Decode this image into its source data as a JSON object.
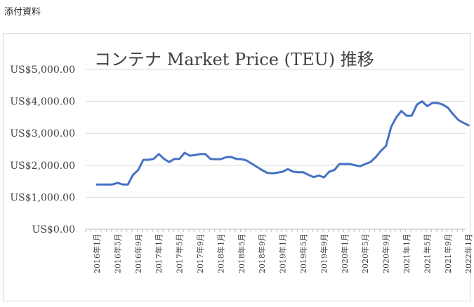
{
  "document_label": "添付資料",
  "chart_data": {
    "type": "line",
    "title": "コンテナ Market Price (TEU) 推移",
    "xlabel": "",
    "ylabel": "",
    "ylim": [
      0,
      5000
    ],
    "y_ticks": [
      "US$0.00",
      "US$1,000.00",
      "US$2,000.00",
      "US$3,000.00",
      "US$4,000.00",
      "US$5,000.00"
    ],
    "y_tick_values": [
      0,
      1000,
      2000,
      3000,
      4000,
      5000
    ],
    "x_tick_labels": [
      "2016年1月",
      "2016年5月",
      "2016年9月",
      "2017年1月",
      "2017年5月",
      "2017年9月",
      "2018年1月",
      "2018年5月",
      "2018年9月",
      "2019年1月",
      "2019年5月",
      "2019年9月",
      "2020年1月",
      "2020年5月",
      "2020年9月",
      "2021年1月",
      "2021年5月",
      "2021年9月",
      "2022年1月"
    ],
    "grid": true,
    "line_color": "#4472c4",
    "series": [
      {
        "values": [
          1400,
          1400,
          1400,
          1400,
          1450,
          1400,
          1400,
          1700,
          1850,
          2170,
          2170,
          2200,
          2350,
          2200,
          2100,
          2200,
          2200,
          2390,
          2300,
          2320,
          2350,
          2350,
          2200,
          2190,
          2190,
          2250,
          2260,
          2200,
          2190,
          2150,
          2050,
          1950,
          1850,
          1760,
          1750,
          1770,
          1800,
          1880,
          1800,
          1780,
          1780,
          1700,
          1630,
          1680,
          1620,
          1800,
          1850,
          2040,
          2040,
          2040,
          2000,
          1970,
          2040,
          2100,
          2250,
          2450,
          2600,
          3200,
          3500,
          3700,
          3550,
          3550,
          3900,
          4000,
          3850,
          3950,
          3950,
          3900,
          3800,
          3600,
          3420,
          3330,
          3250
        ]
      }
    ]
  }
}
